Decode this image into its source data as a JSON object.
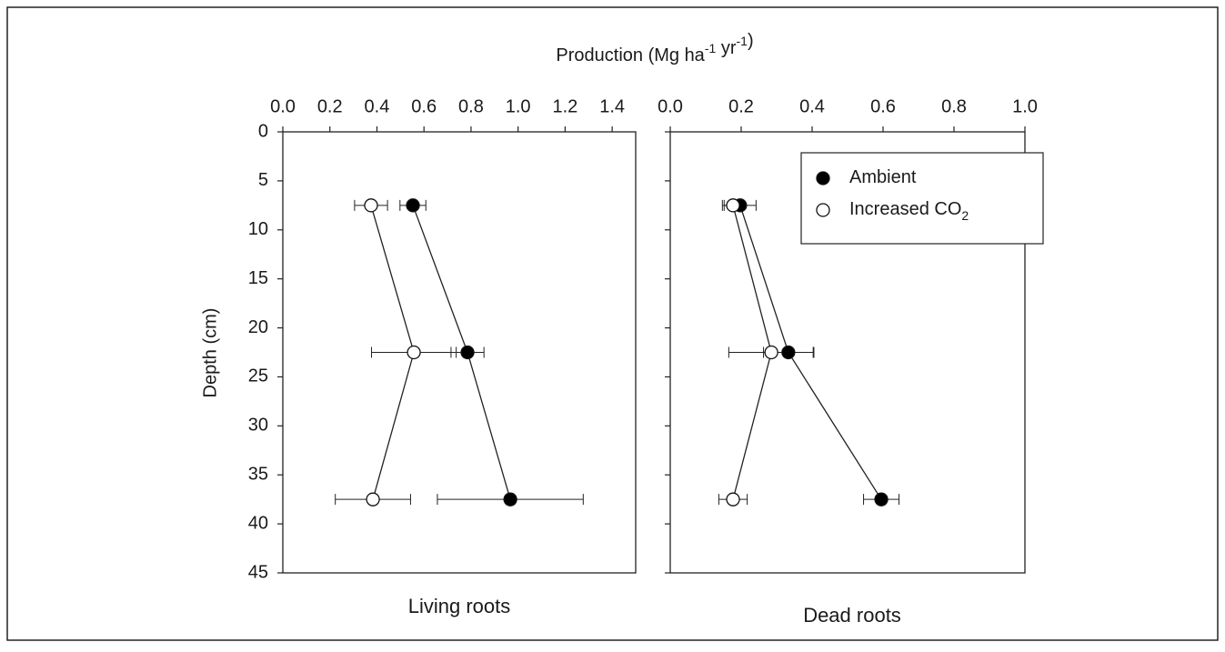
{
  "x_label": "Production (Mg  ha-1 yr-1)",
  "y_label": "Depth (cm)",
  "chart_data": [
    {
      "type": "line",
      "panel_label": "Living roots",
      "depths": [
        7.5,
        22.5,
        37.5
      ],
      "xlim": [
        0,
        1.5
      ],
      "xticks": [
        {
          "value": 0,
          "label": "0.0"
        },
        0.2,
        0.4,
        0.6,
        0.8,
        {
          "value": 1,
          "label": "1.0"
        },
        1.2,
        1.4
      ],
      "ylim": [
        0,
        45
      ],
      "yticks": [
        0,
        5,
        10,
        15,
        20,
        25,
        30,
        35,
        40,
        45
      ],
      "show_ytick_labels": true,
      "series": [
        {
          "fill": "#000000",
          "values": [
            0.553,
            0.785,
            0.967
          ],
          "errors": [
            0.055,
            0.07,
            0.31
          ]
        },
        {
          "fill": "#ffffff",
          "values": [
            0.375,
            0.557,
            0.383
          ],
          "errors": [
            0.07,
            0.18,
            0.16
          ]
        }
      ]
    },
    {
      "type": "line",
      "panel_label": "Dead roots",
      "depths": [
        7.5,
        22.5,
        37.5
      ],
      "xlim": [
        0,
        1
      ],
      "xticks": [
        {
          "value": 0,
          "label": "0.0"
        },
        0.2,
        0.4,
        0.6,
        0.8,
        {
          "value": 1,
          "label": "1.0"
        }
      ],
      "ylim": [
        0,
        45
      ],
      "yticks": [
        0,
        5,
        10,
        15,
        20,
        25,
        30,
        35,
        40,
        45
      ],
      "show_ytick_labels": false,
      "series": [
        {
          "name": "Ambient",
          "fill": "#000000",
          "values": [
            0.197,
            0.333,
            0.595
          ],
          "errors": [
            0.045,
            0.07,
            0.05
          ]
        },
        {
          "name": "Increased CO2",
          "fill": "#ffffff",
          "values": [
            0.177,
            0.285,
            0.177
          ],
          "errors": [
            0.03,
            0.12,
            0.04
          ]
        }
      ]
    }
  ]
}
